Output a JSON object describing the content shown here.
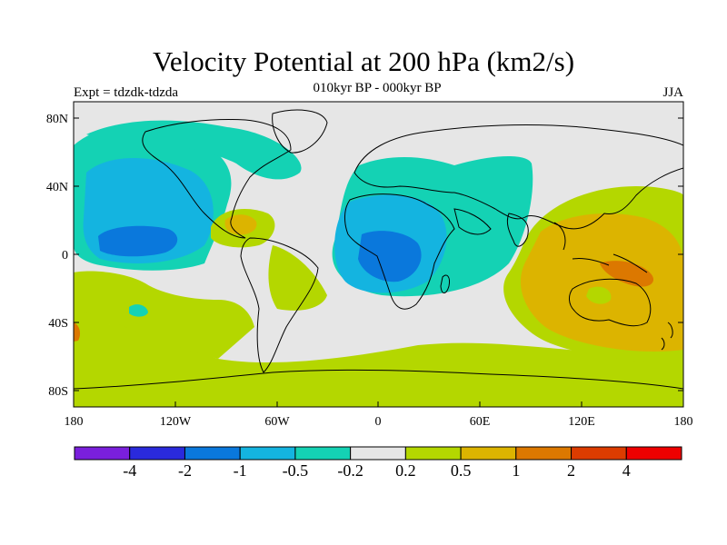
{
  "title": "Velocity Potential at 200 hPa (km2/s)",
  "subtitle": "010kyr BP - 000kyr BP",
  "experiment": "Expt = tdzdk-tdzda",
  "season": "JJA",
  "lon_ticks": [
    "180",
    "120W",
    "60W",
    "0",
    "60E",
    "120E",
    "180"
  ],
  "lat_ticks": [
    "80N",
    "40N",
    "0",
    "40S",
    "80S"
  ],
  "colorbar": {
    "colors": [
      "#7a1fdc",
      "#2a2adc",
      "#0a78dc",
      "#14b4e0",
      "#14d2b4",
      "#e6e6e6",
      "#b4d700",
      "#dcb400",
      "#dc7800",
      "#dc3c00",
      "#ee0000"
    ],
    "labels": [
      "-4",
      "-2",
      "-1",
      "-0.5",
      "-0.2",
      "0.2",
      "0.5",
      "1",
      "2",
      "4"
    ]
  }
}
